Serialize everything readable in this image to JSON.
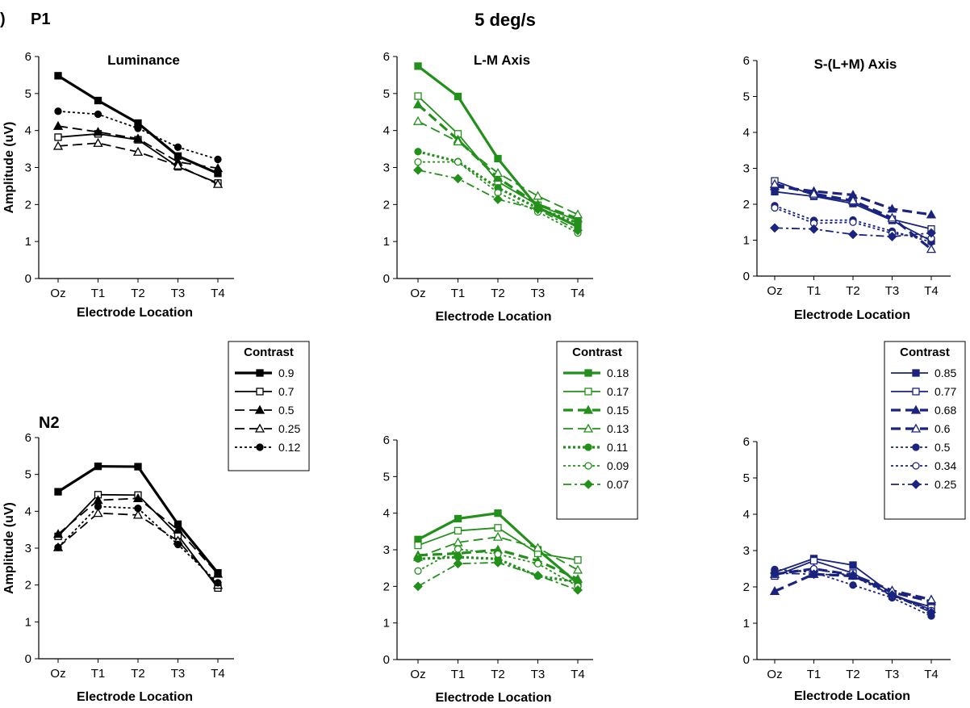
{
  "figure": {
    "panel_letter": ")",
    "title": "5 deg/s",
    "row_labels": [
      "P1",
      "N2"
    ]
  },
  "legends": [
    {
      "title": "Contrast",
      "color": "#000000",
      "entries": [
        {
          "label": "0.9",
          "marker": "filled-square",
          "dash": "solid",
          "width": "thick"
        },
        {
          "label": "0.7",
          "marker": "open-square",
          "dash": "solid",
          "width": "normal"
        },
        {
          "label": "0.5",
          "marker": "filled-triangle",
          "dash": "long-dash",
          "width": "normal"
        },
        {
          "label": "0.25",
          "marker": "open-triangle",
          "dash": "long-dash",
          "width": "normal"
        },
        {
          "label": "0.12",
          "marker": "filled-circle",
          "dash": "dotted",
          "width": "normal"
        }
      ]
    },
    {
      "title": "Contrast",
      "color": "#22901a",
      "entries": [
        {
          "label": "0.18",
          "marker": "filled-square",
          "dash": "solid",
          "width": "thick"
        },
        {
          "label": "0.17",
          "marker": "open-square",
          "dash": "solid",
          "width": "normal"
        },
        {
          "label": "0.15",
          "marker": "filled-triangle",
          "dash": "long-dash",
          "width": "thick"
        },
        {
          "label": "0.13",
          "marker": "open-triangle",
          "dash": "long-dash",
          "width": "normal"
        },
        {
          "label": "0.11",
          "marker": "filled-circle",
          "dash": "dotted",
          "width": "thick"
        },
        {
          "label": "0.09",
          "marker": "open-circle",
          "dash": "dotted",
          "width": "normal"
        },
        {
          "label": "0.07",
          "marker": "filled-diamond",
          "dash": "dash-dot",
          "width": "normal"
        }
      ]
    },
    {
      "title": "Contrast",
      "color": "#1a237e",
      "entries": [
        {
          "label": "0.85",
          "marker": "filled-square",
          "dash": "solid",
          "width": "normal"
        },
        {
          "label": "0.77",
          "marker": "open-square",
          "dash": "solid",
          "width": "normal"
        },
        {
          "label": "0.68",
          "marker": "filled-triangle",
          "dash": "long-dash",
          "width": "thick"
        },
        {
          "label": "0.6",
          "marker": "open-triangle",
          "dash": "long-dash",
          "width": "thick"
        },
        {
          "label": "0.5",
          "marker": "filled-circle",
          "dash": "dotted",
          "width": "normal"
        },
        {
          "label": "0.34",
          "marker": "open-circle",
          "dash": "dotted",
          "width": "normal"
        },
        {
          "label": "0.25",
          "marker": "filled-diamond",
          "dash": "dash-dot",
          "width": "normal"
        }
      ]
    }
  ],
  "chart_data": [
    {
      "type": "line",
      "title": "Luminance",
      "row": "P1",
      "color": "#000000",
      "xlabel": "Electrode Location",
      "ylabel": "Amplitude (uV)",
      "categories": [
        "Oz",
        "T1",
        "T2",
        "T3",
        "T4"
      ],
      "ylim": [
        0,
        6
      ],
      "yticks": [
        0,
        1,
        2,
        3,
        4,
        5,
        6
      ],
      "series": [
        {
          "name": "0.9",
          "values": [
            5.48,
            4.81,
            4.2,
            3.31,
            2.84
          ]
        },
        {
          "name": "0.7",
          "values": [
            3.82,
            3.91,
            3.75,
            3.02,
            2.58
          ]
        },
        {
          "name": "0.5",
          "values": [
            4.12,
            3.96,
            3.78,
            3.15,
            2.98
          ]
        },
        {
          "name": "0.25",
          "values": [
            3.58,
            3.66,
            3.42,
            3.05,
            2.55
          ]
        },
        {
          "name": "0.12",
          "values": [
            4.52,
            4.44,
            4.06,
            3.55,
            3.22
          ]
        }
      ]
    },
    {
      "type": "line",
      "title": "L-M Axis",
      "row": "P1",
      "color": "#22901a",
      "xlabel": "Electrode Location",
      "ylabel": "",
      "categories": [
        "Oz",
        "T1",
        "T2",
        "T3",
        "T4"
      ],
      "ylim": [
        0,
        6
      ],
      "yticks": [
        0,
        1,
        2,
        3,
        4,
        5,
        6
      ],
      "series": [
        {
          "name": "0.18",
          "values": [
            5.74,
            4.92,
            3.24,
            1.92,
            1.4
          ]
        },
        {
          "name": "0.17",
          "values": [
            4.93,
            3.91,
            2.62,
            1.98,
            1.57
          ]
        },
        {
          "name": "0.15",
          "values": [
            4.7,
            3.75,
            2.72,
            2.0,
            1.62
          ]
        },
        {
          "name": "0.13",
          "values": [
            4.25,
            3.7,
            2.85,
            2.23,
            1.73
          ]
        },
        {
          "name": "0.11",
          "values": [
            3.43,
            3.16,
            2.45,
            1.9,
            1.5
          ]
        },
        {
          "name": "0.09",
          "values": [
            3.15,
            3.15,
            2.32,
            1.8,
            1.23
          ]
        },
        {
          "name": "0.07",
          "values": [
            2.93,
            2.7,
            2.14,
            1.87,
            1.3
          ]
        }
      ]
    },
    {
      "type": "line",
      "title": "S-(L+M) Axis",
      "row": "P1",
      "color": "#1a237e",
      "xlabel": "Electrode Location",
      "ylabel": "",
      "categories": [
        "Oz",
        "T1",
        "T2",
        "T3",
        "T4"
      ],
      "ylim": [
        0,
        6
      ],
      "yticks": [
        0,
        1,
        2,
        3,
        4,
        5,
        6
      ],
      "series": [
        {
          "name": "0.85",
          "values": [
            2.35,
            2.22,
            2.02,
            1.55,
            0.98
          ]
        },
        {
          "name": "0.77",
          "values": [
            2.65,
            2.25,
            2.07,
            1.58,
            1.31
          ]
        },
        {
          "name": "0.68",
          "values": [
            2.5,
            2.36,
            2.26,
            1.87,
            1.71
          ]
        },
        {
          "name": "0.6",
          "values": [
            2.56,
            2.29,
            2.1,
            1.62,
            0.75
          ]
        },
        {
          "name": "0.5",
          "values": [
            1.96,
            1.55,
            1.56,
            1.25,
            0.95
          ]
        },
        {
          "name": "0.34",
          "values": [
            1.9,
            1.47,
            1.5,
            1.19,
            1.05
          ]
        },
        {
          "name": "0.25",
          "values": [
            1.34,
            1.31,
            1.16,
            1.1,
            1.2
          ]
        }
      ]
    },
    {
      "type": "line",
      "title": "",
      "row": "N2",
      "color": "#000000",
      "xlabel": "Electrode Location",
      "ylabel": "Amplitude (uV)",
      "categories": [
        "Oz",
        "T1",
        "T2",
        "T3",
        "T4"
      ],
      "ylim": [
        0,
        6
      ],
      "yticks": [
        0,
        1,
        2,
        3,
        4,
        5,
        6
      ],
      "series": [
        {
          "name": "0.9",
          "values": [
            4.53,
            5.22,
            5.21,
            3.65,
            2.33
          ]
        },
        {
          "name": "0.7",
          "values": [
            3.32,
            4.45,
            4.44,
            3.35,
            1.92
          ]
        },
        {
          "name": "0.5",
          "values": [
            3.38,
            4.3,
            4.35,
            3.5,
            2.3
          ]
        },
        {
          "name": "0.25",
          "values": [
            3.02,
            3.95,
            3.9,
            3.2,
            2.0
          ]
        },
        {
          "name": "0.12",
          "values": [
            3.02,
            4.13,
            4.08,
            3.1,
            2.06
          ]
        }
      ]
    },
    {
      "type": "line",
      "title": "",
      "row": "N2",
      "color": "#22901a",
      "xlabel": "Electrode Location",
      "ylabel": "",
      "categories": [
        "Oz",
        "T1",
        "T2",
        "T3",
        "T4"
      ],
      "ylim": [
        0,
        6
      ],
      "yticks": [
        0,
        1,
        2,
        3,
        4,
        5,
        6
      ],
      "series": [
        {
          "name": "0.18",
          "values": [
            3.28,
            3.85,
            4.0,
            3.0,
            2.08
          ]
        },
        {
          "name": "0.17",
          "values": [
            3.12,
            3.52,
            3.6,
            2.9,
            2.72
          ]
        },
        {
          "name": "0.15",
          "values": [
            2.85,
            2.9,
            3.0,
            2.7,
            2.2
          ]
        },
        {
          "name": "0.13",
          "values": [
            2.8,
            3.2,
            3.35,
            3.05,
            2.45
          ]
        },
        {
          "name": "0.11",
          "values": [
            2.75,
            2.8,
            2.75,
            2.28,
            2.12
          ]
        },
        {
          "name": "0.09",
          "values": [
            2.42,
            3.02,
            2.88,
            2.62,
            2.0
          ]
        },
        {
          "name": "0.07",
          "values": [
            2.0,
            2.62,
            2.65,
            2.3,
            1.9
          ]
        }
      ]
    },
    {
      "type": "line",
      "title": "",
      "row": "N2",
      "color": "#1a237e",
      "xlabel": "Electrode Location",
      "ylabel": "",
      "categories": [
        "Oz",
        "T1",
        "T2",
        "T3",
        "T4"
      ],
      "ylim": [
        0,
        6
      ],
      "yticks": [
        0,
        1,
        2,
        3,
        4,
        5,
        6
      ],
      "series": [
        {
          "name": "0.85",
          "values": [
            2.4,
            2.78,
            2.6,
            1.8,
            1.37
          ]
        },
        {
          "name": "0.77",
          "values": [
            2.3,
            2.72,
            2.38,
            1.75,
            1.45
          ]
        },
        {
          "name": "0.68",
          "values": [
            1.88,
            2.35,
            2.3,
            1.85,
            1.6
          ]
        },
        {
          "name": "0.6",
          "values": [
            2.35,
            2.5,
            2.33,
            1.9,
            1.65
          ]
        },
        {
          "name": "0.5",
          "values": [
            2.48,
            2.4,
            2.05,
            1.7,
            1.2
          ]
        },
        {
          "name": "0.34",
          "values": [
            2.35,
            2.5,
            2.3,
            1.75,
            1.35
          ]
        },
        {
          "name": "0.25",
          "values": [
            2.38,
            2.35,
            2.32,
            1.78,
            1.3
          ]
        }
      ]
    }
  ]
}
